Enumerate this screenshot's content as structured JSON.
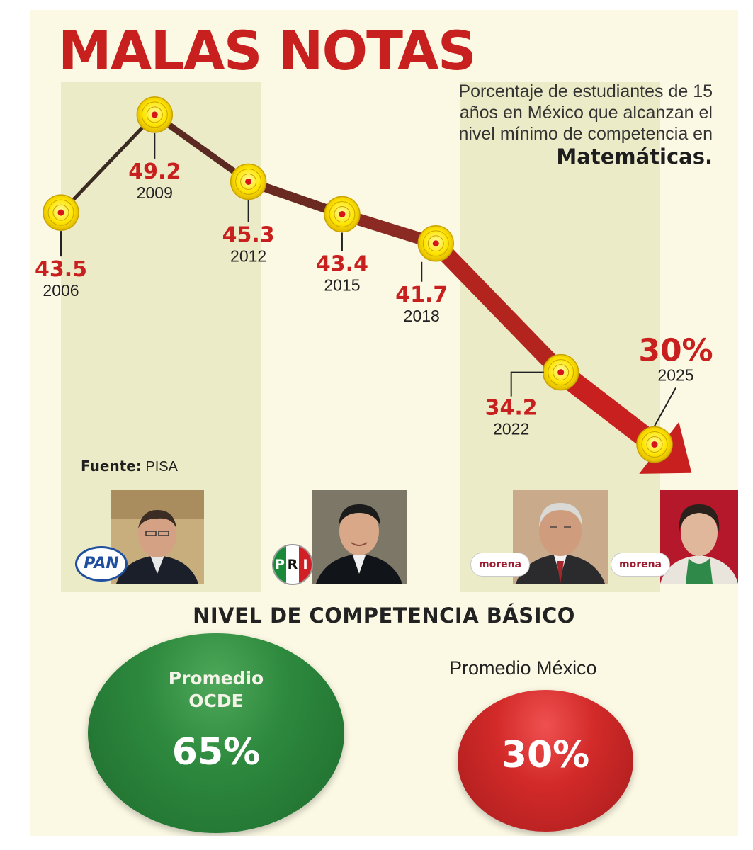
{
  "title": "MALAS NOTAS",
  "description": {
    "text": "Porcentaje de estudiantes de 15 años en México que alcanzan el nivel mínimo de competencia en",
    "emphasis": "Matemáticas."
  },
  "source": {
    "label": "Fuente:",
    "value": "PISA"
  },
  "chart_data": {
    "type": "line",
    "title": "MALAS NOTAS",
    "x": [
      2006,
      2009,
      2012,
      2015,
      2018,
      2022,
      2025
    ],
    "series": [
      {
        "values": [
          43.5,
          49.2,
          45.3,
          43.4,
          41.7,
          34.2,
          30
        ]
      }
    ],
    "value_labels": [
      "43.5",
      "49.2",
      "45.3",
      "43.4",
      "41.7",
      "34.2",
      "30%"
    ],
    "year_labels": [
      "2006",
      "2009",
      "2012",
      "2015",
      "2018",
      "2022",
      "2025"
    ],
    "ylim": [
      28,
      52
    ],
    "grid": false,
    "legend": "none"
  },
  "parties": [
    {
      "logo": "PAN",
      "logo_icon": "pan-logo-icon"
    },
    {
      "logo": [
        "P",
        "R",
        "I"
      ],
      "logo_icon": "pri-logo-icon"
    },
    {
      "logo": "morena",
      "logo_icon": "morena-logo-icon"
    },
    {
      "logo": "morena",
      "logo_icon": "morena-logo-icon"
    }
  ],
  "basic": {
    "title": "NIVEL DE COMPETENCIA BÁSICO",
    "oecd": {
      "label_line1": "Promedio",
      "label_line2": "OCDE",
      "value": "65%"
    },
    "mexico": {
      "label": "Promedio México",
      "value": "30%"
    }
  },
  "colors": {
    "accent_red": "#c8201e",
    "marker_yellow": "#ffe600",
    "oecd_green": "#2e8a3e",
    "mexico_red": "#d22a29",
    "background": "#fbf8e3",
    "column_shade": "#ecebc8"
  }
}
